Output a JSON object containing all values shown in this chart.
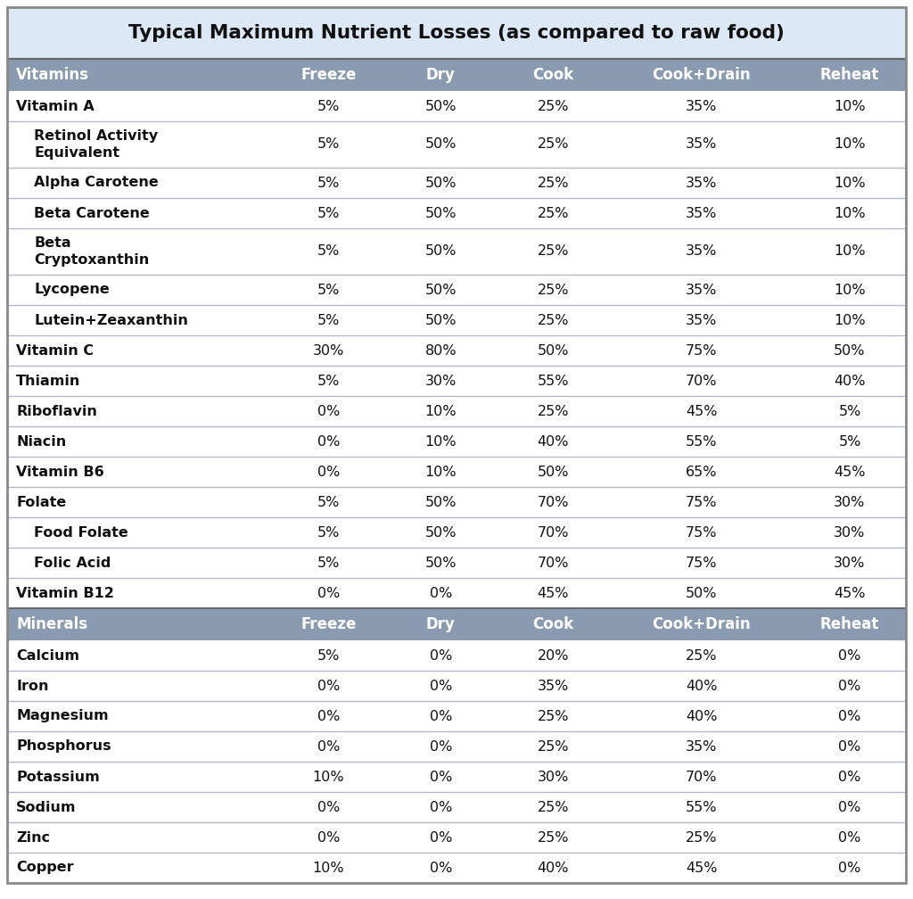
{
  "title": "Typical Maximum Nutrient Losses (as compared to raw food)",
  "title_bg": "#dce8f5",
  "header_bg": "#8a9ab0",
  "header_text_color": "#ffffff",
  "col_headers": [
    "Vitamins",
    "Freeze",
    "Dry",
    "Cook",
    "Cook+Drain",
    "Reheat"
  ],
  "minerals_col_headers": [
    "Minerals",
    "Freeze",
    "Dry",
    "Cook",
    "Cook+Drain",
    "Reheat"
  ],
  "vitamins_rows": [
    [
      "Vitamin A",
      "5%",
      "50%",
      "25%",
      "35%",
      "10%",
      false,
      false
    ],
    [
      "Retinol Activity\nEquivalent",
      "5%",
      "50%",
      "25%",
      "35%",
      "10%",
      true,
      true
    ],
    [
      "Alpha Carotene",
      "5%",
      "50%",
      "25%",
      "35%",
      "10%",
      false,
      true
    ],
    [
      "Beta Carotene",
      "5%",
      "50%",
      "25%",
      "35%",
      "10%",
      false,
      true
    ],
    [
      "Beta\nCryptoxanthin",
      "5%",
      "50%",
      "25%",
      "35%",
      "10%",
      true,
      true
    ],
    [
      "Lycopene",
      "5%",
      "50%",
      "25%",
      "35%",
      "10%",
      false,
      true
    ],
    [
      "Lutein+Zeaxanthin",
      "5%",
      "50%",
      "25%",
      "35%",
      "10%",
      false,
      true
    ],
    [
      "Vitamin C",
      "30%",
      "80%",
      "50%",
      "75%",
      "50%",
      false,
      false
    ],
    [
      "Thiamin",
      "5%",
      "30%",
      "55%",
      "70%",
      "40%",
      false,
      false
    ],
    [
      "Riboflavin",
      "0%",
      "10%",
      "25%",
      "45%",
      "5%",
      false,
      false
    ],
    [
      "Niacin",
      "0%",
      "10%",
      "40%",
      "55%",
      "5%",
      false,
      false
    ],
    [
      "Vitamin B6",
      "0%",
      "10%",
      "50%",
      "65%",
      "45%",
      false,
      false
    ],
    [
      "Folate",
      "5%",
      "50%",
      "70%",
      "75%",
      "30%",
      false,
      false
    ],
    [
      "Food Folate",
      "5%",
      "50%",
      "70%",
      "75%",
      "30%",
      false,
      true
    ],
    [
      "Folic Acid",
      "5%",
      "50%",
      "70%",
      "75%",
      "30%",
      false,
      true
    ],
    [
      "Vitamin B12",
      "0%",
      "0%",
      "45%",
      "50%",
      "45%",
      false,
      false
    ]
  ],
  "minerals_rows": [
    [
      "Calcium",
      "5%",
      "0%",
      "20%",
      "25%",
      "0%"
    ],
    [
      "Iron",
      "0%",
      "0%",
      "35%",
      "40%",
      "0%"
    ],
    [
      "Magnesium",
      "0%",
      "0%",
      "25%",
      "40%",
      "0%"
    ],
    [
      "Phosphorus",
      "0%",
      "0%",
      "25%",
      "35%",
      "0%"
    ],
    [
      "Potassium",
      "10%",
      "0%",
      "30%",
      "70%",
      "0%"
    ],
    [
      "Sodium",
      "0%",
      "0%",
      "25%",
      "55%",
      "0%"
    ],
    [
      "Zinc",
      "0%",
      "0%",
      "25%",
      "25%",
      "0%"
    ],
    [
      "Copper",
      "10%",
      "0%",
      "40%",
      "45%",
      "0%"
    ]
  ],
  "divider_color": "#b0b8c8",
  "outer_border_color": "#888888"
}
